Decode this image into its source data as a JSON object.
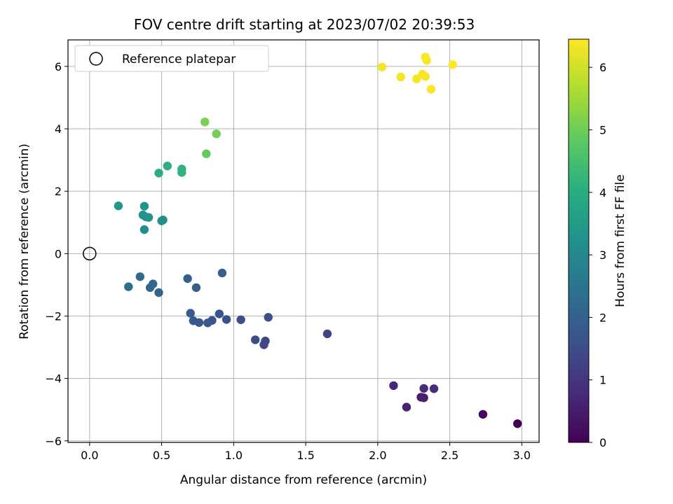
{
  "chart_data": {
    "type": "scatter",
    "title": "FOV centre drift starting at 2023/07/02 20:39:53",
    "xlabel": "Angular distance from reference (arcmin)",
    "ylabel": "Rotation from reference (arcmin)",
    "xlim": [
      -0.15,
      3.12
    ],
    "ylim": [
      -6.05,
      6.85
    ],
    "x_ticks": [
      0.0,
      0.5,
      1.0,
      1.5,
      2.0,
      2.5,
      3.0
    ],
    "x_tick_labels": [
      "0.0",
      "0.5",
      "1.0",
      "1.5",
      "2.0",
      "2.5",
      "3.0"
    ],
    "y_ticks": [
      -6,
      -4,
      -2,
      0,
      2,
      4,
      6
    ],
    "y_tick_labels": [
      "−6",
      "−4",
      "−2",
      "0",
      "2",
      "4",
      "6"
    ],
    "grid": true,
    "legend": {
      "placement": "upper-left",
      "entries": [
        {
          "label": "Reference platepar",
          "marker": "open-circle"
        }
      ]
    },
    "reference_point": {
      "x": 0.0,
      "y": 0.0
    },
    "colorbar": {
      "label": "Hours from first FF file",
      "colormap": "viridis",
      "range": [
        0,
        6.45
      ],
      "ticks": [
        0,
        1,
        2,
        3,
        4,
        5,
        6
      ],
      "tick_labels": [
        "0",
        "1",
        "2",
        "3",
        "4",
        "5",
        "6"
      ]
    },
    "points": [
      {
        "x": 2.97,
        "y": -5.45,
        "c": 0.0
      },
      {
        "x": 2.73,
        "y": -5.15,
        "c": 0.1
      },
      {
        "x": 2.3,
        "y": -4.6,
        "c": 0.5
      },
      {
        "x": 2.32,
        "y": -4.62,
        "c": 0.55
      },
      {
        "x": 2.2,
        "y": -4.92,
        "c": 0.6
      },
      {
        "x": 2.11,
        "y": -4.23,
        "c": 0.7
      },
      {
        "x": 2.32,
        "y": -4.32,
        "c": 0.75
      },
      {
        "x": 2.39,
        "y": -4.33,
        "c": 0.8
      },
      {
        "x": 1.65,
        "y": -2.57,
        "c": 1.3
      },
      {
        "x": 1.21,
        "y": -2.92,
        "c": 1.4
      },
      {
        "x": 1.22,
        "y": -2.8,
        "c": 1.4
      },
      {
        "x": 1.15,
        "y": -2.76,
        "c": 1.45
      },
      {
        "x": 1.24,
        "y": -2.04,
        "c": 1.5
      },
      {
        "x": 1.05,
        "y": -2.12,
        "c": 1.55
      },
      {
        "x": 0.95,
        "y": -2.11,
        "c": 1.6
      },
      {
        "x": 0.9,
        "y": -1.93,
        "c": 1.65
      },
      {
        "x": 0.85,
        "y": -2.14,
        "c": 1.7
      },
      {
        "x": 0.82,
        "y": -2.22,
        "c": 1.75
      },
      {
        "x": 0.76,
        "y": -2.21,
        "c": 1.75
      },
      {
        "x": 0.72,
        "y": -2.15,
        "c": 1.8
      },
      {
        "x": 0.7,
        "y": -1.91,
        "c": 1.85
      },
      {
        "x": 0.92,
        "y": -0.62,
        "c": 1.9
      },
      {
        "x": 0.74,
        "y": -1.09,
        "c": 1.95
      },
      {
        "x": 0.68,
        "y": -0.8,
        "c": 2.0
      },
      {
        "x": 0.48,
        "y": -1.25,
        "c": 2.1
      },
      {
        "x": 0.44,
        "y": -0.97,
        "c": 2.15
      },
      {
        "x": 0.42,
        "y": -1.09,
        "c": 2.2
      },
      {
        "x": 0.35,
        "y": -0.74,
        "c": 2.25
      },
      {
        "x": 0.27,
        "y": -1.06,
        "c": 2.3
      },
      {
        "x": 0.38,
        "y": 0.77,
        "c": 3.15
      },
      {
        "x": 0.5,
        "y": 1.05,
        "c": 3.2
      },
      {
        "x": 0.51,
        "y": 1.08,
        "c": 3.2
      },
      {
        "x": 0.37,
        "y": 1.24,
        "c": 3.25
      },
      {
        "x": 0.39,
        "y": 1.18,
        "c": 3.3
      },
      {
        "x": 0.41,
        "y": 1.16,
        "c": 3.3
      },
      {
        "x": 0.38,
        "y": 1.52,
        "c": 3.35
      },
      {
        "x": 0.2,
        "y": 1.53,
        "c": 3.4
      },
      {
        "x": 0.48,
        "y": 2.58,
        "c": 4.05
      },
      {
        "x": 0.54,
        "y": 2.81,
        "c": 4.1
      },
      {
        "x": 0.64,
        "y": 2.71,
        "c": 4.15
      },
      {
        "x": 0.64,
        "y": 2.6,
        "c": 4.15
      },
      {
        "x": 0.81,
        "y": 3.2,
        "c": 4.9
      },
      {
        "x": 0.88,
        "y": 3.84,
        "c": 5.05
      },
      {
        "x": 0.8,
        "y": 4.22,
        "c": 5.15
      },
      {
        "x": 2.03,
        "y": 5.98,
        "c": 6.35
      },
      {
        "x": 2.16,
        "y": 5.66,
        "c": 6.35
      },
      {
        "x": 2.27,
        "y": 5.6,
        "c": 6.4
      },
      {
        "x": 2.31,
        "y": 5.75,
        "c": 6.4
      },
      {
        "x": 2.33,
        "y": 5.68,
        "c": 6.4
      },
      {
        "x": 2.33,
        "y": 6.3,
        "c": 6.42
      },
      {
        "x": 2.34,
        "y": 6.19,
        "c": 6.42
      },
      {
        "x": 2.37,
        "y": 5.27,
        "c": 6.43
      },
      {
        "x": 2.52,
        "y": 6.06,
        "c": 6.45
      }
    ]
  }
}
